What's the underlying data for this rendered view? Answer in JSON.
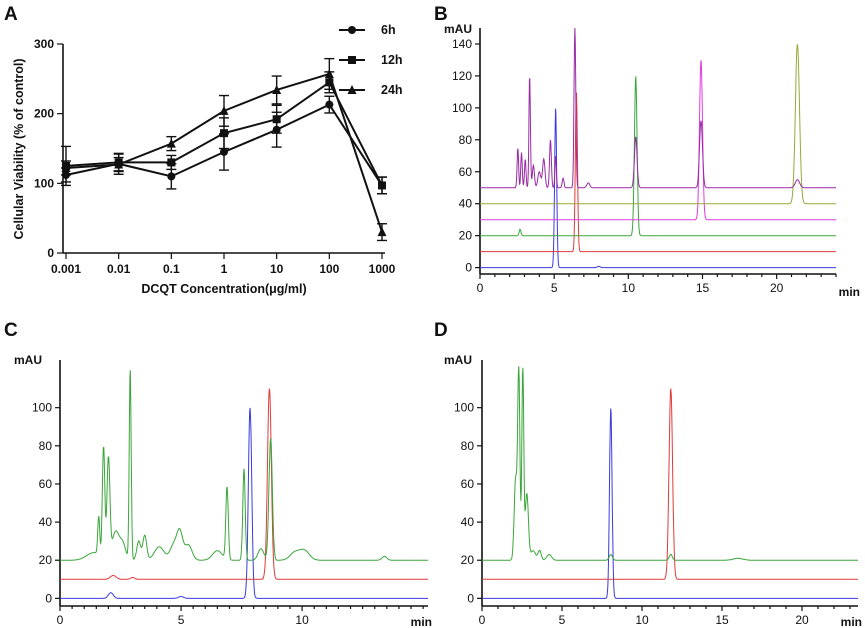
{
  "figure_labels": {
    "a": "A",
    "b": "B",
    "c": "C",
    "d": "D"
  },
  "chart_data": [
    {
      "panel": "A",
      "type": "line",
      "xscale": "log",
      "xlabel": "DCQT Concentration(μg/ml)",
      "ylabel": "Cellular Viability (% of control)",
      "ylim": [
        0,
        300
      ],
      "yticks": [
        0,
        100,
        200,
        300
      ],
      "x": [
        0.001,
        0.01,
        0.1,
        1,
        10,
        100,
        1000
      ],
      "xtick_labels": [
        "0.001",
        "0.01",
        "0.1",
        "1",
        "10",
        "100",
        "1000"
      ],
      "legend_position": "top-right",
      "series": [
        {
          "name": "6h",
          "marker": "circle",
          "values": [
            112,
            128,
            110,
            145,
            177,
            213,
            97
          ],
          "errors": [
            10,
            15,
            18,
            26,
            25,
            12,
            12
          ]
        },
        {
          "name": "12h",
          "marker": "square",
          "values": [
            125,
            130,
            130,
            172,
            192,
            245,
            97
          ],
          "errors": [
            28,
            12,
            10,
            22,
            20,
            15,
            12
          ]
        },
        {
          "name": "24h",
          "marker": "triangle",
          "values": [
            122,
            127,
            157,
            204,
            234,
            257,
            30
          ],
          "errors": [
            10,
            10,
            10,
            22,
            20,
            22,
            12
          ]
        }
      ]
    },
    {
      "panel": "B",
      "type": "line",
      "unit_y": "mAU",
      "unit_x": "min",
      "xlim": [
        0,
        24
      ],
      "ylim": [
        -4,
        150
      ],
      "xticks": [
        0,
        5,
        10,
        15,
        20
      ],
      "yticks": [
        0,
        20,
        40,
        60,
        80,
        100,
        120,
        140
      ],
      "traces": [
        {
          "color": "#3a3ae0",
          "baseline": 0,
          "peaks": [
            [
              5.1,
              100,
              0.07
            ],
            [
              8.0,
              0.8,
              0.1
            ]
          ]
        },
        {
          "color": "#e03a3a",
          "baseline": 10,
          "peaks": [
            [
              6.5,
              100,
              0.07
            ]
          ]
        },
        {
          "color": "#3aa63a",
          "baseline": 20,
          "peaks": [
            [
              2.7,
              4,
              0.06
            ],
            [
              10.5,
              100,
              0.09
            ]
          ]
        },
        {
          "color": "#e03ae0",
          "baseline": 30,
          "peaks": [
            [
              14.9,
              100,
              0.1
            ]
          ]
        },
        {
          "color": "#9aa83a",
          "baseline": 40,
          "peaks": [
            [
              21.4,
              100,
              0.14
            ]
          ]
        },
        {
          "color": "#9a2aa6",
          "baseline": 50,
          "peaks": [
            [
              2.55,
              25,
              0.05
            ],
            [
              2.8,
              22,
              0.05
            ],
            [
              3.05,
              18,
              0.05
            ],
            [
              3.35,
              70,
              0.05
            ],
            [
              3.6,
              14,
              0.07
            ],
            [
              4.0,
              10,
              0.1
            ],
            [
              4.3,
              18,
              0.08
            ],
            [
              4.75,
              30,
              0.06
            ],
            [
              5.1,
              20,
              0.05
            ],
            [
              5.6,
              6,
              0.06
            ],
            [
              6.4,
              100,
              0.06
            ],
            [
              7.3,
              3,
              0.1
            ],
            [
              10.5,
              32,
              0.09
            ],
            [
              14.9,
              42,
              0.1
            ],
            [
              21.4,
              5,
              0.15
            ]
          ]
        }
      ]
    },
    {
      "panel": "C",
      "type": "line",
      "unit_y": "mAU",
      "unit_x": "min",
      "xlim": [
        0,
        15.2
      ],
      "ylim": [
        -4,
        125
      ],
      "xticks": [
        0,
        5,
        10
      ],
      "yticks": [
        0,
        20,
        40,
        60,
        80,
        100
      ],
      "traces": [
        {
          "color": "#3a3ae0",
          "baseline": 0,
          "peaks": [
            [
              2.1,
              3,
              0.1
            ],
            [
              5.0,
              1,
              0.1
            ],
            [
              7.85,
              100,
              0.07
            ]
          ]
        },
        {
          "color": "#e03a3a",
          "baseline": 10,
          "peaks": [
            [
              2.2,
              2,
              0.12
            ],
            [
              3.0,
              1,
              0.08
            ],
            [
              8.65,
              100,
              0.08
            ]
          ]
        },
        {
          "color": "#3aa63a",
          "baseline": 20,
          "peaks": [
            [
              1.4,
              4,
              0.3
            ],
            [
              1.6,
              20,
              0.04
            ],
            [
              1.8,
              58,
              0.05
            ],
            [
              2.0,
              52,
              0.06
            ],
            [
              2.3,
              15,
              0.15
            ],
            [
              2.6,
              8,
              0.12
            ],
            [
              2.9,
              100,
              0.04
            ],
            [
              3.25,
              10,
              0.08
            ],
            [
              3.5,
              13,
              0.08
            ],
            [
              4.1,
              7,
              0.2
            ],
            [
              4.7,
              8,
              0.15
            ],
            [
              4.95,
              14,
              0.12
            ],
            [
              5.3,
              8,
              0.15
            ],
            [
              6.5,
              5,
              0.2
            ],
            [
              6.9,
              38,
              0.05
            ],
            [
              7.6,
              48,
              0.05
            ],
            [
              8.7,
              64,
              0.07
            ],
            [
              8.3,
              6,
              0.12
            ],
            [
              9.7,
              4,
              0.2
            ],
            [
              10.1,
              5,
              0.2
            ],
            [
              13.4,
              2,
              0.1
            ]
          ]
        }
      ]
    },
    {
      "panel": "D",
      "type": "line",
      "unit_y": "mAU",
      "unit_x": "min",
      "xlim": [
        0,
        23.5
      ],
      "ylim": [
        -4,
        125
      ],
      "xticks": [
        0,
        5,
        10,
        15,
        20
      ],
      "yticks": [
        0,
        20,
        40,
        60,
        80,
        100
      ],
      "traces": [
        {
          "color": "#3a3ae0",
          "baseline": 0,
          "peaks": [
            [
              8.05,
              100,
              0.08
            ]
          ]
        },
        {
          "color": "#e03a3a",
          "baseline": 10,
          "peaks": [
            [
              11.8,
              100,
              0.11
            ]
          ]
        },
        {
          "color": "#3aa63a",
          "baseline": 20,
          "peaks": [
            [
              2.1,
              42,
              0.09
            ],
            [
              2.3,
              98,
              0.07
            ],
            [
              2.55,
              100,
              0.06
            ],
            [
              2.8,
              35,
              0.1
            ],
            [
              3.2,
              5,
              0.15
            ],
            [
              3.6,
              5,
              0.1
            ],
            [
              4.2,
              3,
              0.15
            ],
            [
              8.05,
              3,
              0.1
            ],
            [
              11.8,
              3,
              0.1
            ],
            [
              16.0,
              1,
              0.3
            ]
          ]
        }
      ]
    }
  ]
}
